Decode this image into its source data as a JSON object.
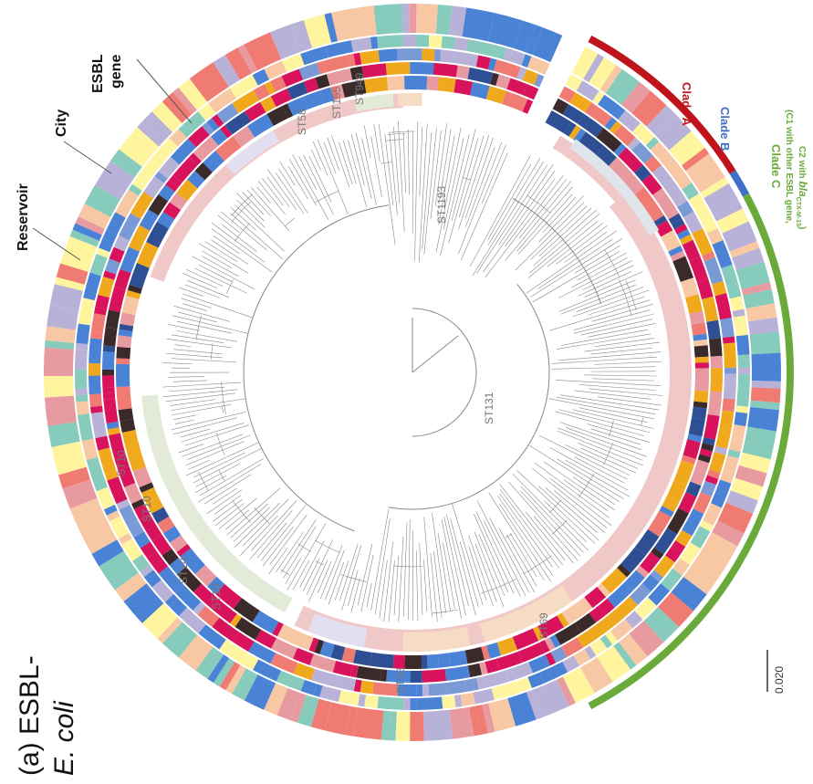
{
  "figure": {
    "panel": "(a) ESBL-",
    "organism": "E. coli"
  },
  "ring_labels": {
    "esbl_line1": "ESBL",
    "esbl_line2": "gene",
    "city": "City",
    "reservoir": "Reservoir"
  },
  "clades": [
    {
      "id": "A",
      "label": "Clade A",
      "color": "#c0141c"
    },
    {
      "id": "B",
      "label": "Clade B",
      "color": "#3f6fc6"
    },
    {
      "id": "C",
      "label": "Clade C",
      "color": "#6aaa3a"
    }
  ],
  "clade_c_note": {
    "line1": "(C1 with other ESBL gene,",
    "line2_prefix": "C2 with ",
    "gene": "bla",
    "subscript": "CTX-M-15",
    "line2_suffix": ")"
  },
  "sequence_types": [
    "ST949",
    "ST155",
    "ST58",
    "ST1193",
    "ST131",
    "ST69",
    "ST38",
    "ST10",
    "ST10",
    "ST10",
    "ST10"
  ],
  "scale_bar": {
    "label": "0.020"
  },
  "palette": {
    "ring_colors": [
      "#d8125b",
      "#f0a81c",
      "#f07b72",
      "#b9b2d8",
      "#86cbbc",
      "#fff59e",
      "#4a82d6",
      "#3a2a2a",
      "#e89aa1",
      "#f7c8a3",
      "#2e4f94",
      "#7a9ad6"
    ],
    "st_band_pink": "#f0c8c8",
    "st_band_peach": "#f6dcc2",
    "st_band_lavender": "#e2e0f0",
    "st_band_green": "#e3ebd8",
    "tree_color": "#888888"
  }
}
